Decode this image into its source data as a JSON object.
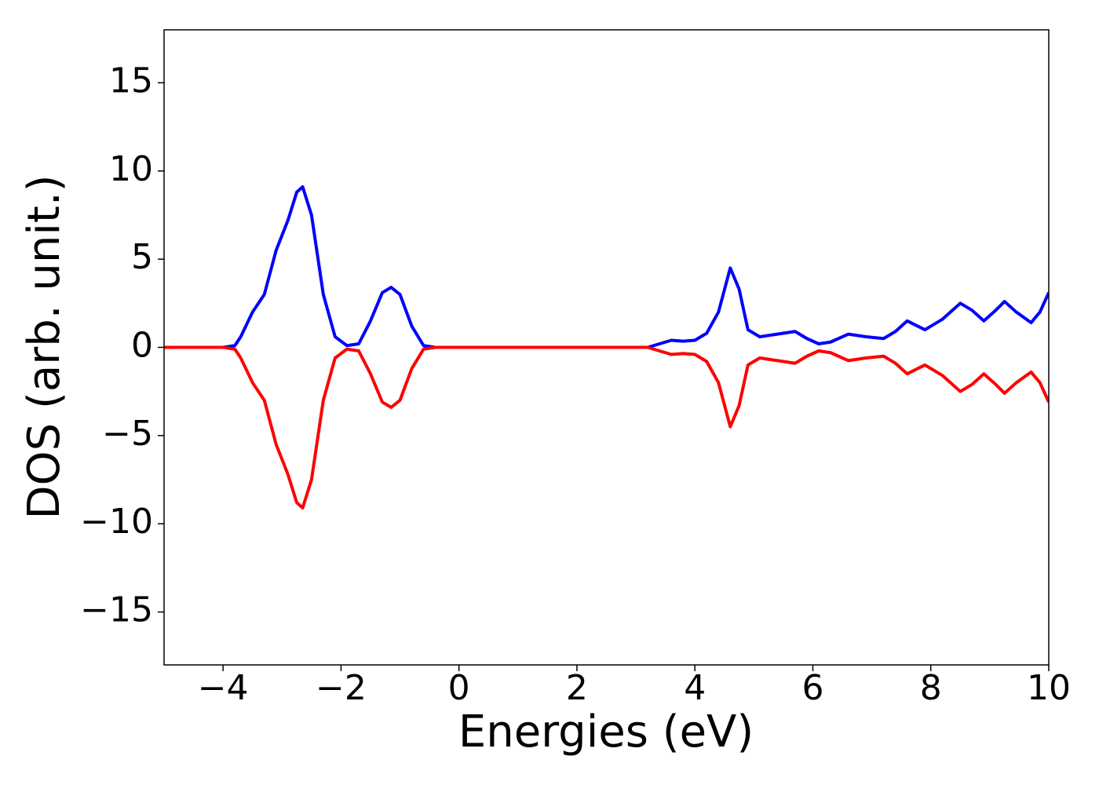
{
  "chart_data": {
    "type": "line",
    "x_label": "Energies (eV)",
    "y_label": "DOS (arb. unit.)",
    "xlim": [
      -5,
      10
    ],
    "ylim": [
      -18,
      18
    ],
    "xticks": [
      {
        "value": -4,
        "label": "−4"
      },
      {
        "value": -2,
        "label": "−2"
      },
      0,
      2,
      4,
      6,
      8,
      10
    ],
    "yticks": [
      {
        "value": -15,
        "label": "−15"
      },
      {
        "value": -10,
        "label": "−10"
      },
      {
        "value": -5,
        "label": "−5"
      },
      0,
      5,
      10,
      15
    ],
    "grid": false,
    "x": [
      -5,
      -4,
      -3.8,
      -3.7,
      -3.5,
      -3.3,
      -3.1,
      -2.9,
      -2.75,
      -2.65,
      -2.5,
      -2.3,
      -2.1,
      -1.9,
      -1.7,
      -1.5,
      -1.3,
      -1.15,
      -1.0,
      -0.8,
      -0.6,
      -0.4,
      0,
      3.2,
      3.4,
      3.6,
      3.8,
      4.0,
      4.2,
      4.4,
      4.6,
      4.75,
      4.9,
      5.1,
      5.4,
      5.7,
      5.9,
      6.1,
      6.3,
      6.6,
      6.9,
      7.2,
      7.4,
      7.6,
      7.9,
      8.2,
      8.5,
      8.7,
      8.9,
      9.1,
      9.25,
      9.45,
      9.7,
      9.85,
      10
    ],
    "series": [
      {
        "color": "#0000ff",
        "values": [
          0,
          0,
          0.1,
          0.6,
          2.0,
          3.0,
          5.5,
          7.2,
          8.8,
          9.1,
          7.5,
          3.0,
          0.6,
          0.1,
          0.2,
          1.5,
          3.1,
          3.4,
          3.0,
          1.2,
          0.1,
          0,
          0,
          0,
          0.2,
          0.4,
          0.35,
          0.4,
          0.8,
          2.0,
          4.5,
          3.3,
          1.0,
          0.6,
          0.75,
          0.9,
          0.5,
          0.2,
          0.3,
          0.75,
          0.6,
          0.5,
          0.9,
          1.5,
          1.0,
          1.6,
          2.5,
          2.1,
          1.5,
          2.1,
          2.6,
          2.0,
          1.4,
          2.0,
          3.1
        ]
      },
      {
        "color": "#ff0000",
        "values": [
          0,
          0,
          -0.1,
          -0.6,
          -2.0,
          -3.0,
          -5.5,
          -7.2,
          -8.8,
          -9.1,
          -7.5,
          -3.0,
          -0.6,
          -0.1,
          -0.2,
          -1.5,
          -3.1,
          -3.4,
          -3.0,
          -1.2,
          -0.1,
          0,
          0,
          0,
          -0.2,
          -0.4,
          -0.35,
          -0.4,
          -0.8,
          -2.0,
          -4.5,
          -3.3,
          -1.0,
          -0.6,
          -0.75,
          -0.9,
          -0.5,
          -0.2,
          -0.3,
          -0.75,
          -0.6,
          -0.5,
          -0.9,
          -1.5,
          -1.0,
          -1.6,
          -2.5,
          -2.1,
          -1.5,
          -2.1,
          -2.6,
          -2.0,
          -1.4,
          -2.0,
          -3.1
        ]
      }
    ]
  }
}
